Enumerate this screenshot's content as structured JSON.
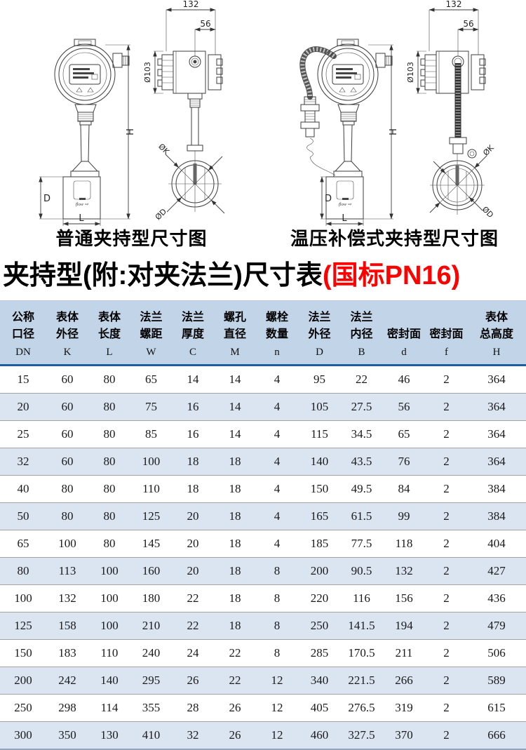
{
  "diagrams": {
    "left": {
      "caption": "普通夹持型尺寸图",
      "labels": {
        "top_width": "132",
        "port_offset": "56",
        "head_dia": "Ø103",
        "total_height": "H",
        "body_height": "D",
        "body_length": "L",
        "flange_outer": "ØK",
        "bore": "ØD",
        "flow": "flow ⇨"
      }
    },
    "right": {
      "caption": "温压补偿式夹持型尺寸图",
      "labels": {
        "top_width": "132",
        "port_offset": "56",
        "head_dia": "Ø103",
        "total_height": "H",
        "body_height": "D",
        "body_length": "L",
        "flange_outer": "ØK",
        "bore": "ØD",
        "flow": "flow ⇨"
      }
    }
  },
  "title": {
    "main": "夹持型(附:对夹法兰)尺寸表",
    "highlight": "(国标PN16)"
  },
  "colors": {
    "highlight_red": "#ff0000",
    "header_bg": "#c2d4e8",
    "row_alt_bg": "#dbe5f2",
    "header_rule_blue": "#1e5c9e"
  },
  "table": {
    "headers": [
      {
        "line1": "公称",
        "line2": "口径",
        "code": "DN"
      },
      {
        "line1": "表体",
        "line2": "外径",
        "code": "K"
      },
      {
        "line1": "表体",
        "line2": "长度",
        "code": "L"
      },
      {
        "line1": "法兰",
        "line2": "螺距",
        "code": "W"
      },
      {
        "line1": "法兰",
        "line2": "厚度",
        "code": "C"
      },
      {
        "line1": "螺孔",
        "line2": "直径",
        "code": "M"
      },
      {
        "line1": "螺栓",
        "line2": "数量",
        "code": "n"
      },
      {
        "line1": "法兰",
        "line2": "外径",
        "code": "D"
      },
      {
        "line1": "法兰",
        "line2": "内径",
        "code": "B"
      },
      {
        "line1": "",
        "line2": "密封面",
        "code": "d"
      },
      {
        "line1": "",
        "line2": "密封面",
        "code": "f"
      },
      {
        "line1": "表体",
        "line2": "总高度",
        "code": "H"
      }
    ],
    "rows": [
      [
        "15",
        "60",
        "80",
        "65",
        "14",
        "14",
        "4",
        "95",
        "22",
        "46",
        "2",
        "364"
      ],
      [
        "20",
        "60",
        "80",
        "75",
        "16",
        "14",
        "4",
        "105",
        "27.5",
        "56",
        "2",
        "364"
      ],
      [
        "25",
        "60",
        "80",
        "85",
        "16",
        "14",
        "4",
        "115",
        "34.5",
        "65",
        "2",
        "364"
      ],
      [
        "32",
        "60",
        "80",
        "100",
        "18",
        "18",
        "4",
        "140",
        "43.5",
        "76",
        "2",
        "364"
      ],
      [
        "40",
        "80",
        "80",
        "110",
        "18",
        "18",
        "4",
        "150",
        "49.5",
        "84",
        "2",
        "384"
      ],
      [
        "50",
        "80",
        "80",
        "125",
        "20",
        "18",
        "4",
        "165",
        "61.5",
        "99",
        "2",
        "384"
      ],
      [
        "65",
        "100",
        "80",
        "145",
        "20",
        "18",
        "4",
        "185",
        "77.5",
        "118",
        "2",
        "404"
      ],
      [
        "80",
        "113",
        "100",
        "160",
        "20",
        "18",
        "8",
        "200",
        "90.5",
        "132",
        "2",
        "427"
      ],
      [
        "100",
        "132",
        "100",
        "180",
        "22",
        "18",
        "8",
        "220",
        "116",
        "156",
        "2",
        "436"
      ],
      [
        "125",
        "158",
        "100",
        "210",
        "22",
        "18",
        "8",
        "250",
        "141.5",
        "194",
        "2",
        "479"
      ],
      [
        "150",
        "183",
        "110",
        "240",
        "24",
        "22",
        "8",
        "285",
        "170.5",
        "211",
        "2",
        "506"
      ],
      [
        "200",
        "242",
        "140",
        "295",
        "26",
        "22",
        "12",
        "340",
        "221.5",
        "266",
        "2",
        "589"
      ],
      [
        "250",
        "298",
        "114",
        "355",
        "28",
        "26",
        "12",
        "405",
        "276.5",
        "319",
        "2",
        "615"
      ],
      [
        "300",
        "350",
        "130",
        "410",
        "32",
        "26",
        "12",
        "460",
        "327.5",
        "370",
        "2",
        "666"
      ]
    ]
  }
}
